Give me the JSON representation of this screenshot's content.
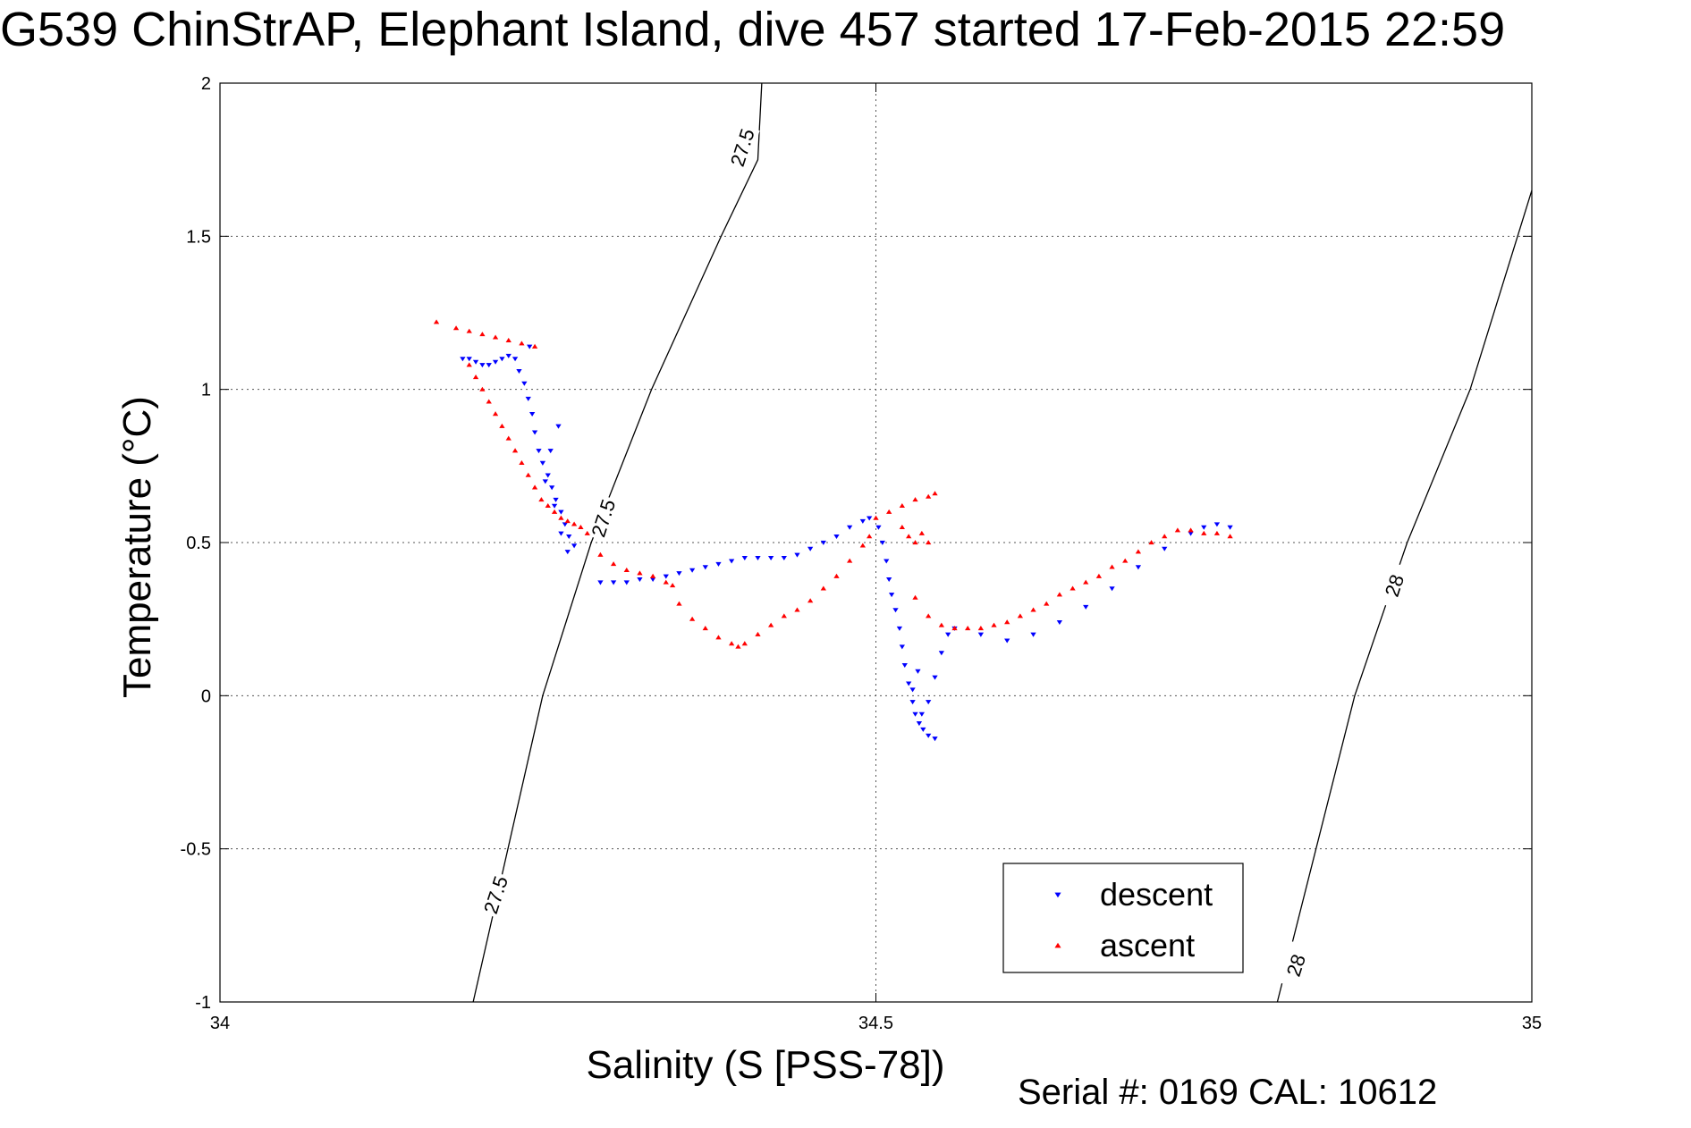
{
  "chart_data": {
    "type": "scatter",
    "title": "G539 ChinStrAP, Elephant Island, dive 457 started 17-Feb-2015 22:59",
    "xlabel": "Salinity (S [PSS-78])",
    "ylabel": "Temperature (°C)",
    "xlim": [
      34,
      35
    ],
    "ylim": [
      -1,
      2
    ],
    "xticks": [
      "34",
      "34.5",
      "35"
    ],
    "yticks": [
      "-1",
      "-0.5",
      "0",
      "0.5",
      "1",
      "1.5",
      "2"
    ],
    "grid": true,
    "legend_position": "bottom-right",
    "footer": "Serial #: 0169 CAL: 10612",
    "colors": {
      "descent": "#0000ff",
      "ascent": "#ff0000"
    },
    "series": [
      {
        "name": "descent",
        "marker": "triangle-down",
        "color": "#0000ff",
        "points": [
          [
            34.185,
            1.1
          ],
          [
            34.19,
            1.1
          ],
          [
            34.195,
            1.09
          ],
          [
            34.2,
            1.08
          ],
          [
            34.205,
            1.08
          ],
          [
            34.21,
            1.09
          ],
          [
            34.215,
            1.1
          ],
          [
            34.22,
            1.11
          ],
          [
            34.225,
            1.1
          ],
          [
            34.228,
            1.06
          ],
          [
            34.232,
            1.02
          ],
          [
            34.235,
            0.97
          ],
          [
            34.238,
            0.92
          ],
          [
            34.24,
            0.86
          ],
          [
            34.243,
            0.8
          ],
          [
            34.246,
            0.76
          ],
          [
            34.25,
            0.72
          ],
          [
            34.253,
            0.68
          ],
          [
            34.256,
            0.64
          ],
          [
            34.26,
            0.6
          ],
          [
            34.263,
            0.56
          ],
          [
            34.266,
            0.52
          ],
          [
            34.27,
            0.49
          ],
          [
            34.265,
            0.47
          ],
          [
            34.26,
            0.53
          ],
          [
            34.255,
            0.62
          ],
          [
            34.248,
            0.7
          ],
          [
            34.252,
            0.8
          ],
          [
            34.258,
            0.88
          ],
          [
            34.236,
            1.14
          ],
          [
            34.29,
            0.37
          ],
          [
            34.3,
            0.37
          ],
          [
            34.31,
            0.37
          ],
          [
            34.32,
            0.38
          ],
          [
            34.33,
            0.38
          ],
          [
            34.34,
            0.39
          ],
          [
            34.35,
            0.4
          ],
          [
            34.36,
            0.41
          ],
          [
            34.37,
            0.42
          ],
          [
            34.38,
            0.43
          ],
          [
            34.39,
            0.44
          ],
          [
            34.4,
            0.45
          ],
          [
            34.41,
            0.45
          ],
          [
            34.42,
            0.45
          ],
          [
            34.43,
            0.45
          ],
          [
            34.44,
            0.46
          ],
          [
            34.45,
            0.48
          ],
          [
            34.46,
            0.5
          ],
          [
            34.47,
            0.52
          ],
          [
            34.48,
            0.55
          ],
          [
            34.49,
            0.57
          ],
          [
            34.495,
            0.58
          ],
          [
            34.502,
            0.55
          ],
          [
            34.505,
            0.5
          ],
          [
            34.508,
            0.44
          ],
          [
            34.51,
            0.38
          ],
          [
            34.512,
            0.33
          ],
          [
            34.515,
            0.28
          ],
          [
            34.518,
            0.22
          ],
          [
            34.52,
            0.16
          ],
          [
            34.522,
            0.1
          ],
          [
            34.525,
            0.04
          ],
          [
            34.528,
            -0.02
          ],
          [
            34.53,
            -0.06
          ],
          [
            34.533,
            -0.09
          ],
          [
            34.536,
            -0.11
          ],
          [
            34.54,
            -0.13
          ],
          [
            34.545,
            -0.14
          ],
          [
            34.535,
            -0.06
          ],
          [
            34.528,
            0.02
          ],
          [
            34.532,
            0.08
          ],
          [
            34.54,
            -0.02
          ],
          [
            34.545,
            0.06
          ],
          [
            34.55,
            0.14
          ],
          [
            34.555,
            0.2
          ],
          [
            34.56,
            0.22
          ],
          [
            34.58,
            0.2
          ],
          [
            34.6,
            0.18
          ],
          [
            34.62,
            0.2
          ],
          [
            34.64,
            0.24
          ],
          [
            34.66,
            0.29
          ],
          [
            34.68,
            0.35
          ],
          [
            34.7,
            0.42
          ],
          [
            34.72,
            0.48
          ],
          [
            34.74,
            0.53
          ],
          [
            34.75,
            0.55
          ],
          [
            34.76,
            0.56
          ],
          [
            34.77,
            0.55
          ]
        ]
      },
      {
        "name": "ascent",
        "marker": "triangle-up",
        "color": "#ff0000",
        "points": [
          [
            34.165,
            1.22
          ],
          [
            34.18,
            1.2
          ],
          [
            34.19,
            1.19
          ],
          [
            34.2,
            1.18
          ],
          [
            34.21,
            1.17
          ],
          [
            34.22,
            1.16
          ],
          [
            34.23,
            1.15
          ],
          [
            34.24,
            1.14
          ],
          [
            34.19,
            1.08
          ],
          [
            34.195,
            1.04
          ],
          [
            34.2,
            1.0
          ],
          [
            34.205,
            0.96
          ],
          [
            34.21,
            0.92
          ],
          [
            34.215,
            0.88
          ],
          [
            34.22,
            0.84
          ],
          [
            34.225,
            0.8
          ],
          [
            34.23,
            0.76
          ],
          [
            34.235,
            0.72
          ],
          [
            34.24,
            0.68
          ],
          [
            34.245,
            0.64
          ],
          [
            34.25,
            0.62
          ],
          [
            34.255,
            0.6
          ],
          [
            34.26,
            0.58
          ],
          [
            34.265,
            0.57
          ],
          [
            34.27,
            0.56
          ],
          [
            34.275,
            0.55
          ],
          [
            34.28,
            0.53
          ],
          [
            34.29,
            0.46
          ],
          [
            34.3,
            0.43
          ],
          [
            34.31,
            0.41
          ],
          [
            34.32,
            0.4
          ],
          [
            34.33,
            0.39
          ],
          [
            34.34,
            0.37
          ],
          [
            34.345,
            0.36
          ],
          [
            34.35,
            0.3
          ],
          [
            34.36,
            0.25
          ],
          [
            34.37,
            0.22
          ],
          [
            34.38,
            0.19
          ],
          [
            34.39,
            0.17
          ],
          [
            34.395,
            0.16
          ],
          [
            34.4,
            0.17
          ],
          [
            34.41,
            0.2
          ],
          [
            34.42,
            0.23
          ],
          [
            34.43,
            0.26
          ],
          [
            34.44,
            0.28
          ],
          [
            34.45,
            0.31
          ],
          [
            34.46,
            0.35
          ],
          [
            34.47,
            0.39
          ],
          [
            34.48,
            0.44
          ],
          [
            34.49,
            0.49
          ],
          [
            34.495,
            0.52
          ],
          [
            34.5,
            0.58
          ],
          [
            34.51,
            0.6
          ],
          [
            34.52,
            0.62
          ],
          [
            34.53,
            0.64
          ],
          [
            34.54,
            0.65
          ],
          [
            34.545,
            0.66
          ],
          [
            34.52,
            0.55
          ],
          [
            34.525,
            0.52
          ],
          [
            34.53,
            0.5
          ],
          [
            34.535,
            0.53
          ],
          [
            34.54,
            0.5
          ],
          [
            34.53,
            0.32
          ],
          [
            34.54,
            0.26
          ],
          [
            34.55,
            0.23
          ],
          [
            34.56,
            0.22
          ],
          [
            34.57,
            0.22
          ],
          [
            34.58,
            0.22
          ],
          [
            34.59,
            0.23
          ],
          [
            34.6,
            0.24
          ],
          [
            34.61,
            0.26
          ],
          [
            34.62,
            0.28
          ],
          [
            34.63,
            0.3
          ],
          [
            34.64,
            0.33
          ],
          [
            34.65,
            0.35
          ],
          [
            34.66,
            0.37
          ],
          [
            34.67,
            0.39
          ],
          [
            34.68,
            0.42
          ],
          [
            34.69,
            0.44
          ],
          [
            34.7,
            0.47
          ],
          [
            34.71,
            0.5
          ],
          [
            34.72,
            0.52
          ],
          [
            34.73,
            0.54
          ],
          [
            34.74,
            0.54
          ],
          [
            34.75,
            0.53
          ],
          [
            34.76,
            0.53
          ],
          [
            34.77,
            0.52
          ]
        ]
      }
    ],
    "contours": [
      {
        "label": "27.5",
        "points": [
          [
            34.193,
            -1.0
          ],
          [
            34.246,
            0.0
          ],
          [
            34.283,
            0.5
          ],
          [
            34.329,
            1.0
          ],
          [
            34.382,
            1.5
          ],
          [
            34.41,
            1.75
          ],
          [
            34.413,
            2.0
          ]
        ]
      },
      {
        "label": "28",
        "points": [
          [
            34.806,
            -1.0
          ],
          [
            34.865,
            0.0
          ],
          [
            34.905,
            0.5
          ],
          [
            34.953,
            1.0
          ],
          [
            35.0,
            1.65
          ]
        ]
      }
    ],
    "contour_labels": [
      {
        "text": "27.5",
        "x": 34.21,
        "y": -0.65
      },
      {
        "text": "27.5",
        "x": 34.292,
        "y": 0.58
      },
      {
        "text": "27.5",
        "x": 34.398,
        "y": 1.79
      },
      {
        "text": "28",
        "x": 34.82,
        "y": -0.88
      },
      {
        "text": "28",
        "x": 34.895,
        "y": 0.36
      }
    ]
  }
}
